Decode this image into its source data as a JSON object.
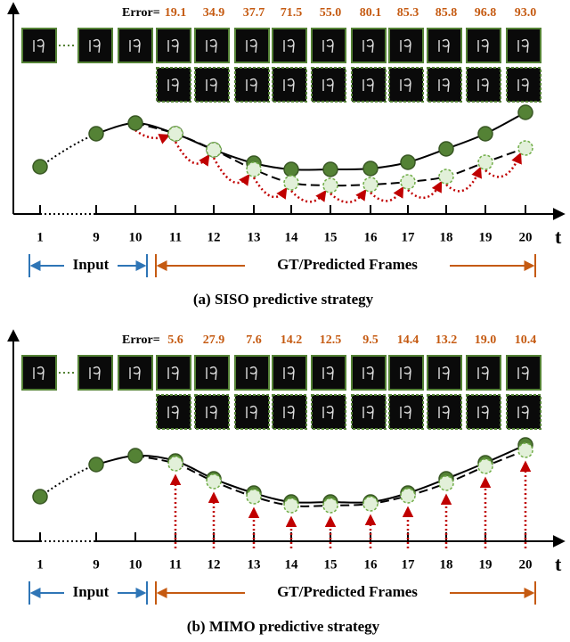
{
  "panels": [
    {
      "error_label": "Error=",
      "errors": [
        "19.1",
        "34.9",
        "37.7",
        "71.5",
        "55.0",
        "80.1",
        "85.3",
        "85.8",
        "96.8",
        "93.0"
      ],
      "x_labels": [
        "1",
        "9",
        "10",
        "11",
        "12",
        "13",
        "14",
        "15",
        "16",
        "17",
        "18",
        "19",
        "20"
      ],
      "axis_label": "t",
      "input_label": "Input",
      "frames_label": "GT/Predicted Frames",
      "caption": "(a) SISO predictive strategy"
    },
    {
      "error_label": "Error=",
      "errors": [
        "5.6",
        "27.9",
        "7.6",
        "14.2",
        "12.5",
        "9.5",
        "14.4",
        "13.2",
        "19.0",
        "10.4"
      ],
      "x_labels": [
        "1",
        "9",
        "10",
        "11",
        "12",
        "13",
        "14",
        "15",
        "16",
        "17",
        "18",
        "19",
        "20"
      ],
      "axis_label": "t",
      "input_label": "Input",
      "frames_label": "GT/Predicted Frames",
      "caption": "(b) MIMO predictive strategy"
    }
  ]
}
